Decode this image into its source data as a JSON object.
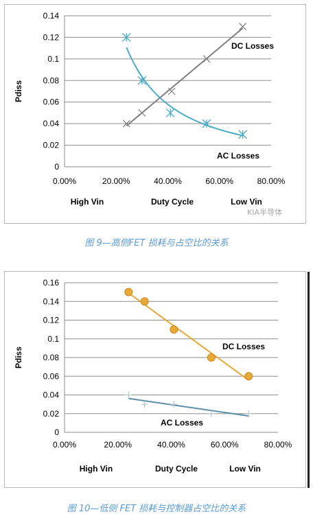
{
  "chart_data": [
    {
      "type": "scatter",
      "title": "",
      "xlabel": "",
      "ylabel": "Pdiss",
      "xlim": [
        0,
        0.8
      ],
      "ylim": [
        0,
        0.14
      ],
      "x_ticks": [
        0,
        0.2,
        0.4,
        0.6,
        0.8
      ],
      "x_tick_labels": [
        "0.00%",
        "20.00%",
        "40.00%",
        "60.00%",
        "80.00%"
      ],
      "y_ticks": [
        0,
        0.02,
        0.04,
        0.06,
        0.08,
        0.1,
        0.12,
        0.14
      ],
      "y_tick_labels": [
        "0",
        "0.02",
        "0.04",
        "0.06",
        "0.08",
        "0.1",
        "0.12",
        "0.14"
      ],
      "grid": "horizontal",
      "bottom_labels": [
        "High Vin",
        "Duty Cycle",
        "Low Vin"
      ],
      "series": [
        {
          "name": "DC Losses",
          "color": "#7f7f7f",
          "marker": "x",
          "fit": "linear",
          "x": [
            0.24,
            0.3,
            0.415,
            0.55,
            0.69
          ],
          "y": [
            0.04,
            0.05,
            0.07,
            0.1,
            0.13
          ]
        },
        {
          "name": "AC Losses",
          "color": "#4bacc6",
          "marker": "star",
          "fit": "power",
          "x": [
            0.24,
            0.3,
            0.41,
            0.55,
            0.69
          ],
          "y": [
            0.12,
            0.08,
            0.05,
            0.04,
            0.03
          ]
        }
      ]
    },
    {
      "type": "scatter",
      "title": "",
      "xlabel": "",
      "ylabel": "Pdiss",
      "xlim": [
        0,
        0.8
      ],
      "ylim": [
        0,
        0.16
      ],
      "x_ticks": [
        0,
        0.2,
        0.4,
        0.6,
        0.8
      ],
      "x_tick_labels": [
        "0.00%",
        "20.00%",
        "40.00%",
        "60.00%",
        "80.00%"
      ],
      "y_ticks": [
        0,
        0.02,
        0.04,
        0.06,
        0.08,
        0.1,
        0.12,
        0.14,
        0.16
      ],
      "y_tick_labels": [
        "0",
        "0.02",
        "0.04",
        "0.06",
        "0.08",
        "0.1",
        "0.12",
        "0.14",
        "0.16"
      ],
      "grid": "horizontal",
      "bottom_labels": [
        "High Vin",
        "Duty Cycle",
        "Low Vin"
      ],
      "series": [
        {
          "name": "DC Losses",
          "color": "#e8a838",
          "marker": "circle",
          "fit": "linear",
          "x": [
            0.24,
            0.3,
            0.41,
            0.55,
            0.69
          ],
          "y": [
            0.15,
            0.14,
            0.11,
            0.08,
            0.06
          ]
        },
        {
          "name": "AC Losses",
          "color": "#5b8fa8",
          "marker": "plus",
          "fit": "linear",
          "x": [
            0.24,
            0.3,
            0.41,
            0.55,
            0.69
          ],
          "y": [
            0.04,
            0.03,
            0.03,
            0.02,
            0.02
          ]
        }
      ]
    }
  ],
  "captions": {
    "fig9": "图 9—高侧FET 损耗与占空比的关系",
    "fig10": "图 10—低侧 FET 损耗与控制器占空比的关系"
  },
  "watermark": "KIA半导体"
}
